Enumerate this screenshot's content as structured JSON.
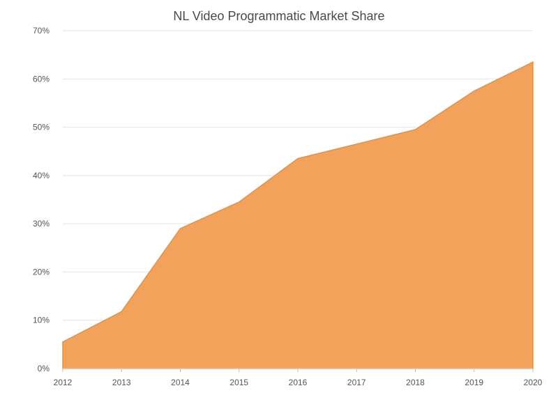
{
  "chart_data": {
    "type": "area",
    "title": "NL Video Programmatic Market Share",
    "xlabel": "",
    "ylabel": "",
    "categories": [
      "2012",
      "2013",
      "2014",
      "2015",
      "2016",
      "2017",
      "2018",
      "2019",
      "2020"
    ],
    "series": [
      {
        "values": [
          5.5,
          11.8,
          29.0,
          34.5,
          43.5,
          46.5,
          49.5,
          57.5,
          63.5
        ]
      }
    ],
    "ylim": [
      0,
      70
    ],
    "yticks": [
      0,
      10,
      20,
      30,
      40,
      50,
      60,
      70
    ],
    "ytick_labels": [
      "0%",
      "10%",
      "20%",
      "30%",
      "40%",
      "50%",
      "60%",
      "70%"
    ],
    "grid": true,
    "legend": "none",
    "colors": {
      "fill": "#f2a25a",
      "stroke": "#e8913f",
      "grid": "#e5e5e5",
      "text": "#555555"
    }
  }
}
